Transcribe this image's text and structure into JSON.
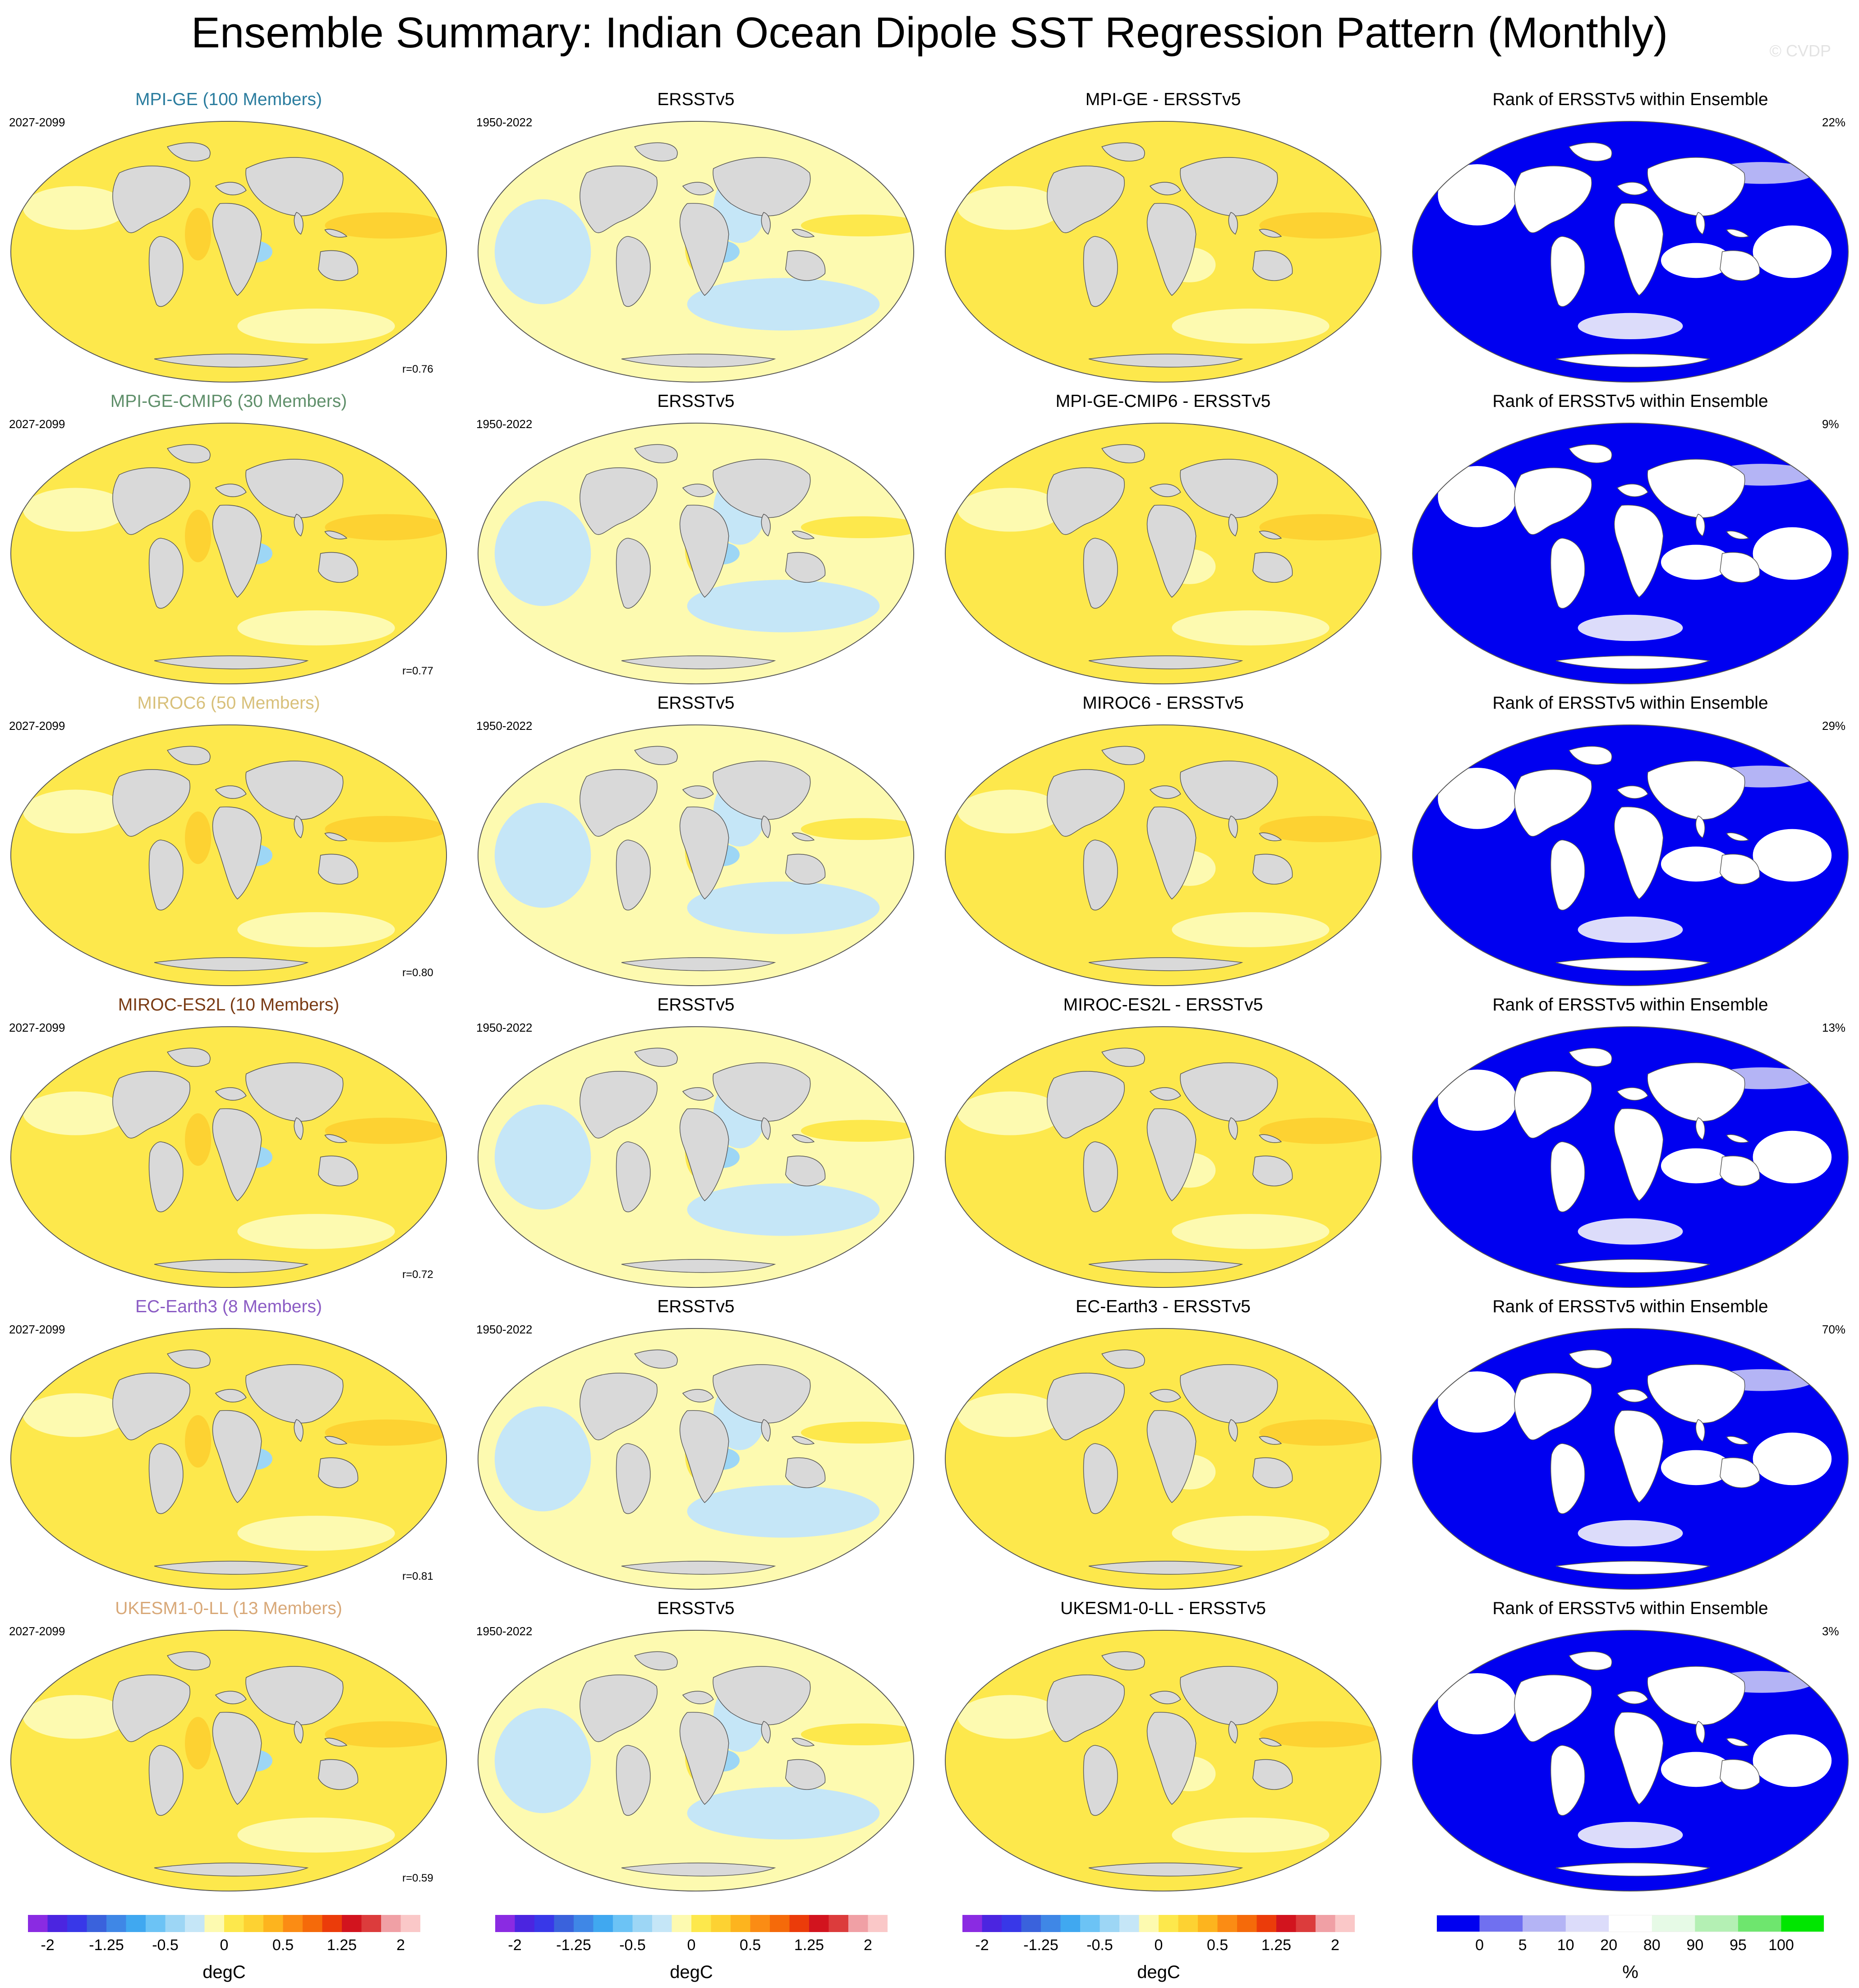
{
  "figure": {
    "title": "Ensemble Summary: Indian Ocean Dipole SST Regression Pattern (Monthly)",
    "watermark": "© CVDP"
  },
  "colors": {
    "land": "#d9d9d9",
    "mpi_ge": "#2a7c9e",
    "mpi_ge_cmip6": "#5f8f6a",
    "miroc6": "#d8c07a",
    "miroc_es2l": "#7a3b14",
    "ec_earth3": "#8b5cc4",
    "ukesm1": "#d8a878"
  },
  "chart_data": {
    "type": "heatmap",
    "rows": [
      {
        "model": "MPI-GE (100 Members)",
        "model_color": "#2a7c9e",
        "model_period": "2027-2099",
        "obs_title": "ERSSTv5",
        "obs_period": "1950-2022",
        "diff_title": "MPI-GE - ERSSTv5",
        "rank_title": "Rank of ERSSTv5 within Ensemble",
        "pattern_corr": "r=0.76",
        "rank_percent": "22%"
      },
      {
        "model": "MPI-GE-CMIP6 (30 Members)",
        "model_color": "#5f8f6a",
        "model_period": "2027-2099",
        "obs_title": "ERSSTv5",
        "obs_period": "1950-2022",
        "diff_title": "MPI-GE-CMIP6 - ERSSTv5",
        "rank_title": "Rank of ERSSTv5 within Ensemble",
        "pattern_corr": "r=0.77",
        "rank_percent": "9%"
      },
      {
        "model": "MIROC6 (50 Members)",
        "model_color": "#d8c07a",
        "model_period": "2027-2099",
        "obs_title": "ERSSTv5",
        "obs_period": "1950-2022",
        "diff_title": "MIROC6 - ERSSTv5",
        "rank_title": "Rank of ERSSTv5 within Ensemble",
        "pattern_corr": "r=0.80",
        "rank_percent": "29%"
      },
      {
        "model": "MIROC-ES2L (10 Members)",
        "model_color": "#7a3b14",
        "model_period": "2027-2099",
        "obs_title": "ERSSTv5",
        "obs_period": "1950-2022",
        "diff_title": "MIROC-ES2L - ERSSTv5",
        "rank_title": "Rank of ERSSTv5 within Ensemble",
        "pattern_corr": "r=0.72",
        "rank_percent": "13%"
      },
      {
        "model": "EC-Earth3 (8 Members)",
        "model_color": "#8b5cc4",
        "model_period": "2027-2099",
        "obs_title": "ERSSTv5",
        "obs_period": "1950-2022",
        "diff_title": "EC-Earth3 - ERSSTv5",
        "rank_title": "Rank of ERSSTv5 within Ensemble",
        "pattern_corr": "r=0.81",
        "rank_percent": "70%"
      },
      {
        "model": "UKESM1-0-LL (13 Members)",
        "model_color": "#d8a878",
        "model_period": "2027-2099",
        "obs_title": "ERSSTv5",
        "obs_period": "1950-2022",
        "diff_title": "UKESM1-0-LL - ERSSTv5",
        "rank_title": "Rank of ERSSTv5 within Ensemble",
        "pattern_corr": "r=0.59",
        "rank_percent": "3%"
      }
    ],
    "sst_colorbar": {
      "units": "degC",
      "tick_labels": [
        "-2",
        "-1.25",
        "-0.5",
        "0",
        "0.5",
        "1.25",
        "2"
      ],
      "levels": [
        -2,
        -1.75,
        -1.5,
        -1.25,
        -1,
        -0.75,
        -0.5,
        -0.25,
        -0.1,
        0,
        0.1,
        0.25,
        0.5,
        0.75,
        1,
        1.25,
        1.5,
        1.75,
        2
      ],
      "colors": [
        "#8a2be2",
        "#4b25e0",
        "#3838e8",
        "#3a62dc",
        "#3f87e6",
        "#40a8f0",
        "#6cc3f5",
        "#9dd6f5",
        "#c5e6f7",
        "#fdfab0",
        "#fde84c",
        "#fdd232",
        "#fdb41e",
        "#fb8c14",
        "#f56a0a",
        "#eb3c0a",
        "#d2141e",
        "#dc3c3c",
        "#f0a0a5",
        "#fac8c8"
      ]
    },
    "rank_colorbar": {
      "units": "%",
      "tick_labels": [
        "0",
        "5",
        "10",
        "20",
        "80",
        "90",
        "95",
        "100"
      ],
      "colors": [
        "#0000f0",
        "#7070f0",
        "#b4b4f5",
        "#dcdcfa",
        "#ffffff",
        "#e6fae6",
        "#b4f0b4",
        "#6ee66e",
        "#00e600"
      ]
    }
  }
}
